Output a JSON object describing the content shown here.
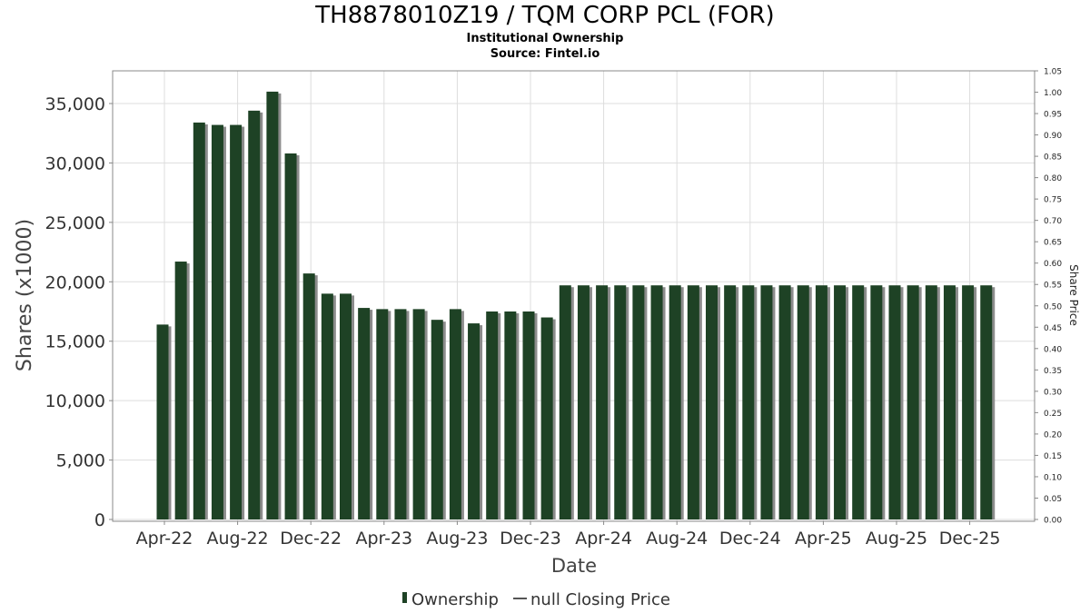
{
  "chart_data": {
    "type": "bar",
    "title": "TH8878010Z19 / TQM CORP PCL (FOR)",
    "subtitle": "Institutional Ownership",
    "source": "Source: Fintel.io",
    "xlabel": "Date",
    "ylabel": "Shares (x1000)",
    "ylabel_right": "Share Price",
    "ylim": [
      0,
      37000
    ],
    "ylim_right": [
      0,
      1.05
    ],
    "yticks": [
      "0",
      "5,000",
      "10,000",
      "15,000",
      "20,000",
      "25,000",
      "30,000",
      "35,000"
    ],
    "yticks_right": [
      "0.00",
      "0.05",
      "0.10",
      "0.15",
      "0.20",
      "0.25",
      "0.30",
      "0.35",
      "0.40",
      "0.45",
      "0.50",
      "0.55",
      "0.60",
      "0.65",
      "0.70",
      "0.75",
      "0.80",
      "0.85",
      "0.90",
      "0.95",
      "1.00",
      "1.05"
    ],
    "xticks": [
      "Apr-22",
      "Aug-22",
      "Dec-22",
      "Apr-23",
      "Aug-23",
      "Dec-23",
      "Apr-24",
      "Aug-24",
      "Dec-24",
      "Apr-25",
      "Aug-25",
      "Dec-25"
    ],
    "series": [
      {
        "name": "Ownership",
        "values": [
          16400,
          21700,
          33400,
          33200,
          33200,
          34400,
          36000,
          30800,
          20700,
          19000,
          19000,
          17800,
          17700,
          17700,
          17700,
          16800,
          17700,
          16500,
          17500,
          17500,
          17500,
          17000,
          19700,
          19700,
          19700,
          19700,
          19700,
          19700,
          19700,
          19700,
          19700,
          19700,
          19700,
          19700,
          19700,
          19700,
          19700,
          19700,
          19700,
          19700,
          19700,
          19700,
          19700,
          19700,
          19700,
          19700
        ]
      }
    ],
    "legend": [
      {
        "label": "Ownership",
        "color": "#1e4225"
      },
      {
        "label": "null Closing Price",
        "color": "#555555"
      }
    ],
    "colors": {
      "bar": "#1e4225",
      "shadow": "#8c8c8c",
      "grid": "#dddddd",
      "axis": "#888888"
    }
  }
}
